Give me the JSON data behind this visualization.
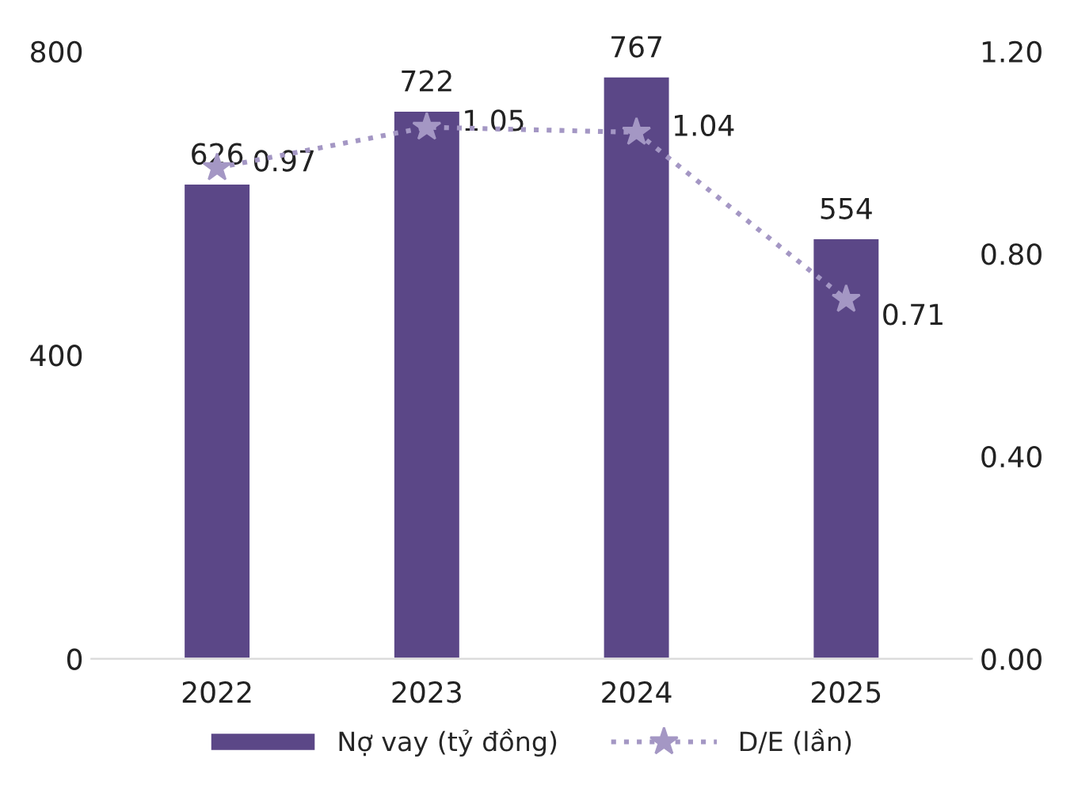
{
  "chart_data": {
    "type": "bar",
    "categories": [
      "2022",
      "2023",
      "2024",
      "2025"
    ],
    "series": [
      {
        "name": "Nợ vay (tỷ đồng)",
        "color": "#5b4787",
        "values": [
          626,
          722,
          767,
          554
        ]
      },
      {
        "name": "D/E (lần)",
        "type": "line",
        "axis": "y2",
        "color": "#a497c4",
        "marker": "star",
        "line_style": "dotted",
        "values": [
          0.97,
          1.05,
          1.04,
          0.71
        ]
      }
    ],
    "ylim": [
      0,
      800
    ],
    "yticks": [
      0,
      400,
      800
    ],
    "y2lim": [
      0,
      1.2
    ],
    "y2ticks": [
      {
        "value": 0,
        "label": "0.00"
      },
      {
        "value": 0.4,
        "label": "0.40"
      },
      {
        "value": 0.8,
        "label": "0.80"
      },
      {
        "value": 1.2,
        "label": "1.20"
      }
    ],
    "data_labels": true,
    "legend": "bottom",
    "grid": false
  }
}
